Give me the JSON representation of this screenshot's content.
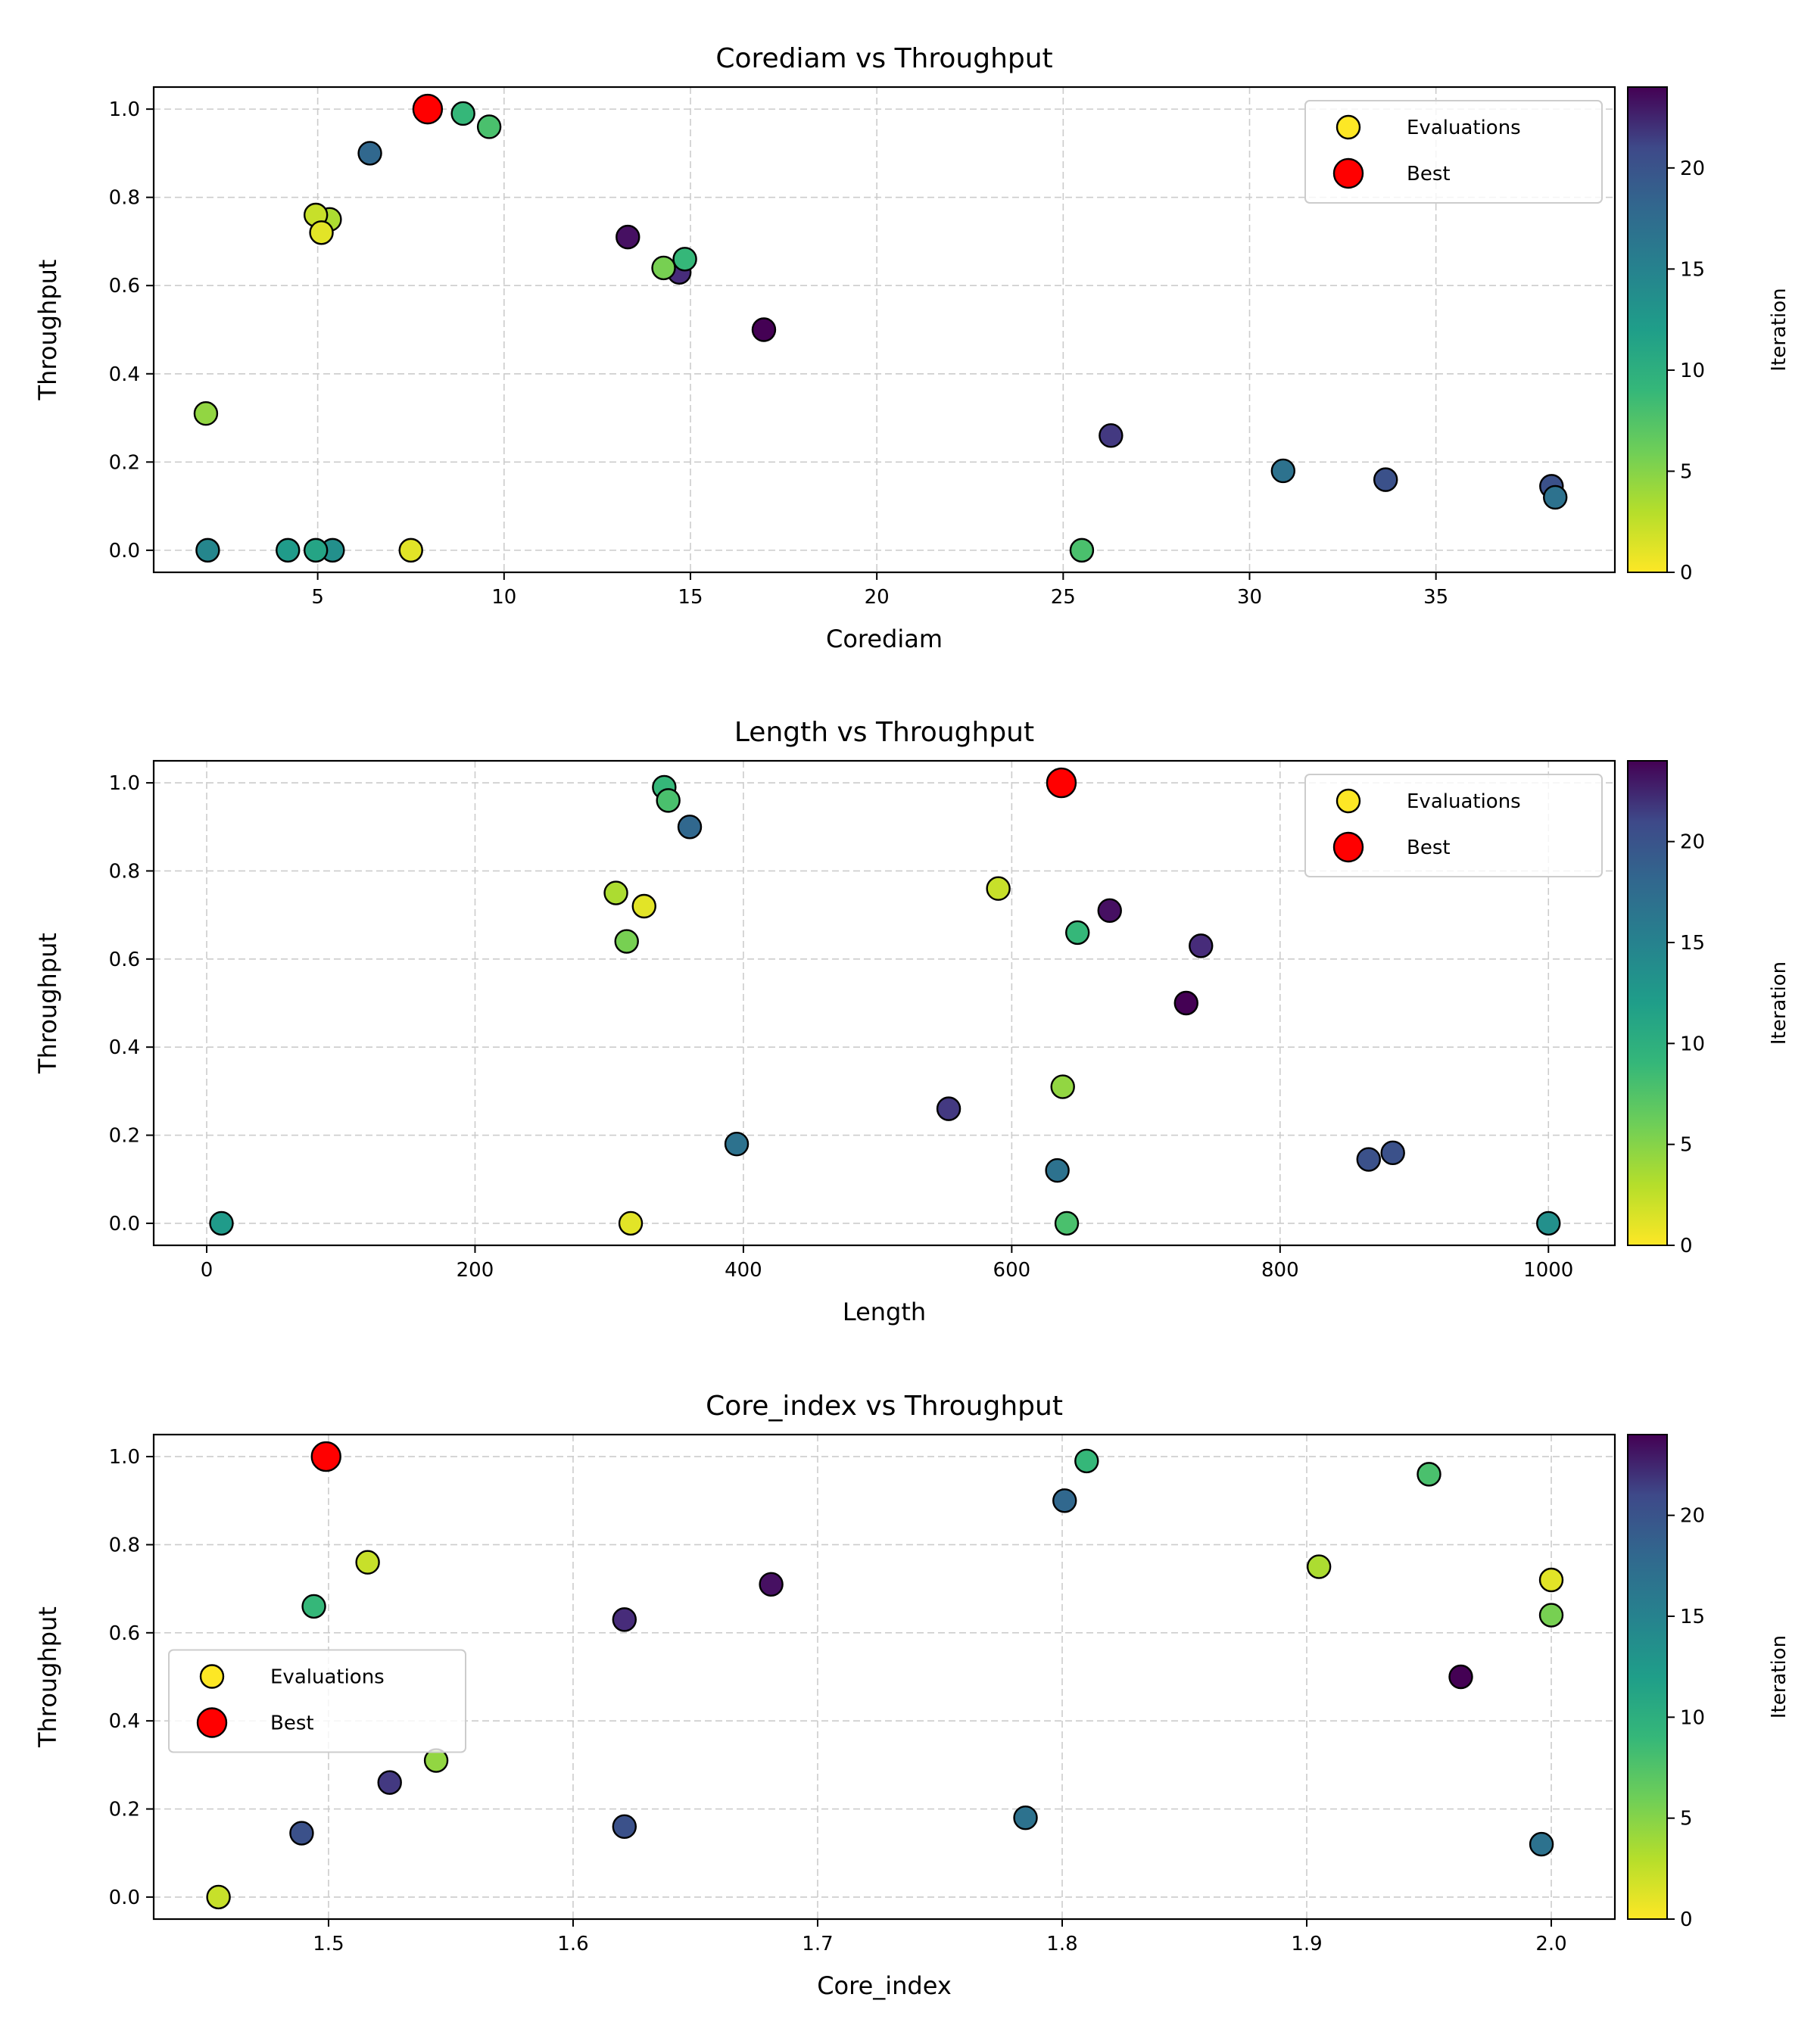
{
  "colorbar": {
    "label": "Iteration",
    "min": 0,
    "max": 24,
    "ticks": [
      0,
      5,
      10,
      15,
      20
    ]
  },
  "legend": {
    "evaluations_label": "Evaluations",
    "best_label": "Best"
  },
  "chart_data": [
    {
      "type": "scatter",
      "title": "Corediam vs Throughput",
      "xlabel": "Corediam",
      "ylabel": "Throughput",
      "xlim": [
        0.6,
        39.8
      ],
      "ylim": [
        -0.05,
        1.05
      ],
      "xticks": [
        5,
        10,
        15,
        20,
        25,
        30,
        35
      ],
      "yticks": [
        0.0,
        0.2,
        0.4,
        0.6,
        0.8,
        1.0
      ],
      "legend_position": "top-right",
      "grid": true,
      "points": [
        {
          "x": 16.97,
          "y": 0.5,
          "iter": 0
        },
        {
          "x": 13.32,
          "y": 0.71,
          "iter": 1
        },
        {
          "x": 14.7,
          "y": 0.63,
          "iter": 3
        },
        {
          "x": 26.28,
          "y": 0.26,
          "iter": 4
        },
        {
          "x": 33.65,
          "y": 0.16,
          "iter": 6
        },
        {
          "x": 38.1,
          "y": 0.145,
          "iter": 6
        },
        {
          "x": 6.4,
          "y": 0.9,
          "iter": 8
        },
        {
          "x": 30.9,
          "y": 0.18,
          "iter": 9
        },
        {
          "x": 38.2,
          "y": 0.12,
          "iter": 9
        },
        {
          "x": 2.05,
          "y": 0.0,
          "iter": 11
        },
        {
          "x": 5.4,
          "y": 0.0,
          "iter": 12
        },
        {
          "x": 4.2,
          "y": 0.0,
          "iter": 13
        },
        {
          "x": 4.95,
          "y": 0.0,
          "iter": 14
        },
        {
          "x": 14.85,
          "y": 0.66,
          "iter": 16
        },
        {
          "x": 25.5,
          "y": 0.0,
          "iter": 17
        },
        {
          "x": 9.6,
          "y": 0.96,
          "iter": 17
        },
        {
          "x": 8.9,
          "y": 0.99,
          "iter": 16
        },
        {
          "x": 14.28,
          "y": 0.64,
          "iter": 19
        },
        {
          "x": 2.0,
          "y": 0.31,
          "iter": 20
        },
        {
          "x": 5.32,
          "y": 0.75,
          "iter": 21
        },
        {
          "x": 4.95,
          "y": 0.76,
          "iter": 22
        },
        {
          "x": 5.1,
          "y": 0.72,
          "iter": 23
        },
        {
          "x": 7.5,
          "y": 0.0,
          "iter": 23
        }
      ],
      "best": {
        "x": 7.95,
        "y": 1.0
      }
    },
    {
      "type": "scatter",
      "title": "Length vs Throughput",
      "xlabel": "Length",
      "ylabel": "Throughput",
      "xlim": [
        -39.5,
        1049.5
      ],
      "ylim": [
        -0.05,
        1.05
      ],
      "xticks": [
        0,
        200,
        400,
        600,
        800,
        1000
      ],
      "yticks": [
        0.0,
        0.2,
        0.4,
        0.6,
        0.8,
        1.0
      ],
      "legend_position": "top-right",
      "grid": true,
      "points": [
        {
          "x": 730,
          "y": 0.5,
          "iter": 0
        },
        {
          "x": 673,
          "y": 0.71,
          "iter": 1
        },
        {
          "x": 741,
          "y": 0.63,
          "iter": 3
        },
        {
          "x": 553,
          "y": 0.26,
          "iter": 4
        },
        {
          "x": 884,
          "y": 0.16,
          "iter": 6
        },
        {
          "x": 866,
          "y": 0.145,
          "iter": 6
        },
        {
          "x": 360,
          "y": 0.9,
          "iter": 8
        },
        {
          "x": 395,
          "y": 0.18,
          "iter": 9
        },
        {
          "x": 634,
          "y": 0.12,
          "iter": 9
        },
        {
          "x": 1000,
          "y": 0.0,
          "iter": 12
        },
        {
          "x": 11,
          "y": 0.0,
          "iter": 13
        },
        {
          "x": 649,
          "y": 0.66,
          "iter": 16
        },
        {
          "x": 341,
          "y": 0.99,
          "iter": 16
        },
        {
          "x": 641,
          "y": 0.0,
          "iter": 17
        },
        {
          "x": 344,
          "y": 0.96,
          "iter": 17
        },
        {
          "x": 313,
          "y": 0.64,
          "iter": 19
        },
        {
          "x": 638,
          "y": 0.31,
          "iter": 20
        },
        {
          "x": 305,
          "y": 0.75,
          "iter": 21
        },
        {
          "x": 590,
          "y": 0.76,
          "iter": 22
        },
        {
          "x": 326,
          "y": 0.72,
          "iter": 23
        },
        {
          "x": 316,
          "y": 0.0,
          "iter": 23
        }
      ],
      "best": {
        "x": 637,
        "y": 1.0
      }
    },
    {
      "type": "scatter",
      "title": "Core_index vs Throughput",
      "xlabel": "Core_index",
      "ylabel": "Throughput",
      "xlim": [
        1.4285,
        2.026
      ],
      "ylim": [
        -0.05,
        1.05
      ],
      "xticks": [
        1.5,
        1.6,
        1.7,
        1.8,
        1.9,
        2.0
      ],
      "yticks": [
        0.0,
        0.2,
        0.4,
        0.6,
        0.8,
        1.0
      ],
      "legend_position": "center-left",
      "grid": true,
      "points": [
        {
          "x": 1.963,
          "y": 0.5,
          "iter": 0
        },
        {
          "x": 1.681,
          "y": 0.71,
          "iter": 1
        },
        {
          "x": 1.621,
          "y": 0.63,
          "iter": 3
        },
        {
          "x": 1.525,
          "y": 0.26,
          "iter": 4
        },
        {
          "x": 1.621,
          "y": 0.16,
          "iter": 6
        },
        {
          "x": 1.489,
          "y": 0.145,
          "iter": 6
        },
        {
          "x": 1.801,
          "y": 0.9,
          "iter": 8
        },
        {
          "x": 1.785,
          "y": 0.18,
          "iter": 9
        },
        {
          "x": 1.996,
          "y": 0.12,
          "iter": 9
        },
        {
          "x": 1.494,
          "y": 0.66,
          "iter": 16
        },
        {
          "x": 1.81,
          "y": 0.99,
          "iter": 16
        },
        {
          "x": 1.95,
          "y": 0.96,
          "iter": 17
        },
        {
          "x": 2.0,
          "y": 0.64,
          "iter": 19
        },
        {
          "x": 1.544,
          "y": 0.31,
          "iter": 20
        },
        {
          "x": 1.905,
          "y": 0.75,
          "iter": 21
        },
        {
          "x": 1.516,
          "y": 0.76,
          "iter": 22
        },
        {
          "x": 2.0,
          "y": 0.72,
          "iter": 23
        },
        {
          "x": 1.455,
          "y": 0.0,
          "iter": 22
        }
      ],
      "best": {
        "x": 1.499,
        "y": 1.0
      }
    }
  ]
}
